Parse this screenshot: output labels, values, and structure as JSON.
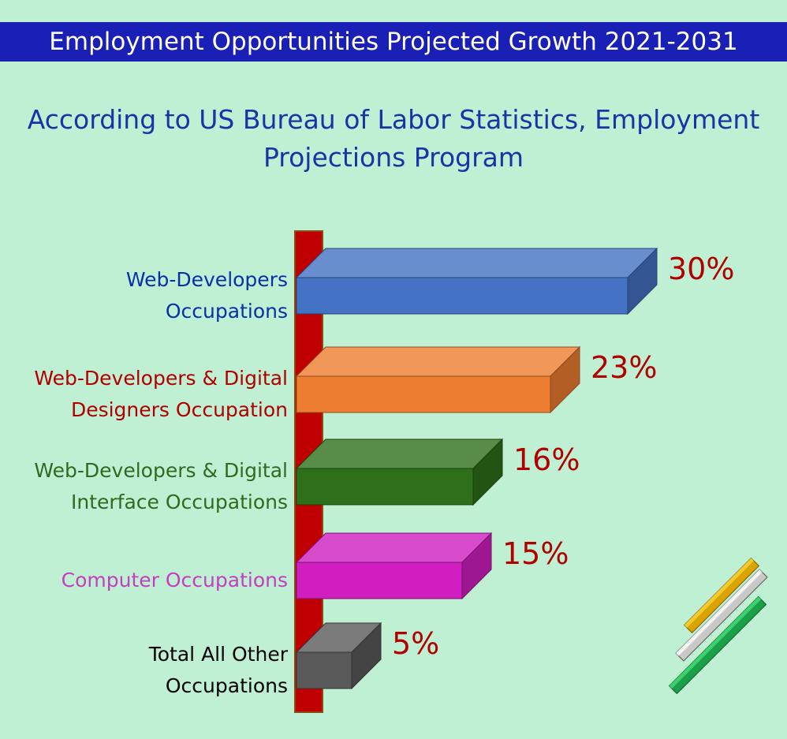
{
  "chart_data": {
    "type": "bar3d",
    "title": "Employment Opportunities Projected Growth 2021-2031",
    "subtitle": "According to US Bureau of Labor Statistics, Employment Projections Program",
    "categories": [
      "Web-Developers Occupations",
      "Web-Developers & Digital Designers Occupation",
      "Web-Developers & Digital Interface Occupations",
      "Computer Occupations",
      "Total All Other Occupations"
    ],
    "values": [
      30,
      23,
      16,
      15,
      5
    ],
    "value_labels": [
      "30%",
      "23%",
      "16%",
      "15%",
      "5%"
    ],
    "colors": [
      "#4472c4",
      "#ed7d31",
      "#2e7019",
      "#d01ec1",
      "#595959"
    ],
    "label_colors": [
      "#0b2fa6",
      "#b00000",
      "#2e6b1f",
      "#c43ec0",
      "#000000"
    ],
    "value_label_color": "#b00000"
  }
}
